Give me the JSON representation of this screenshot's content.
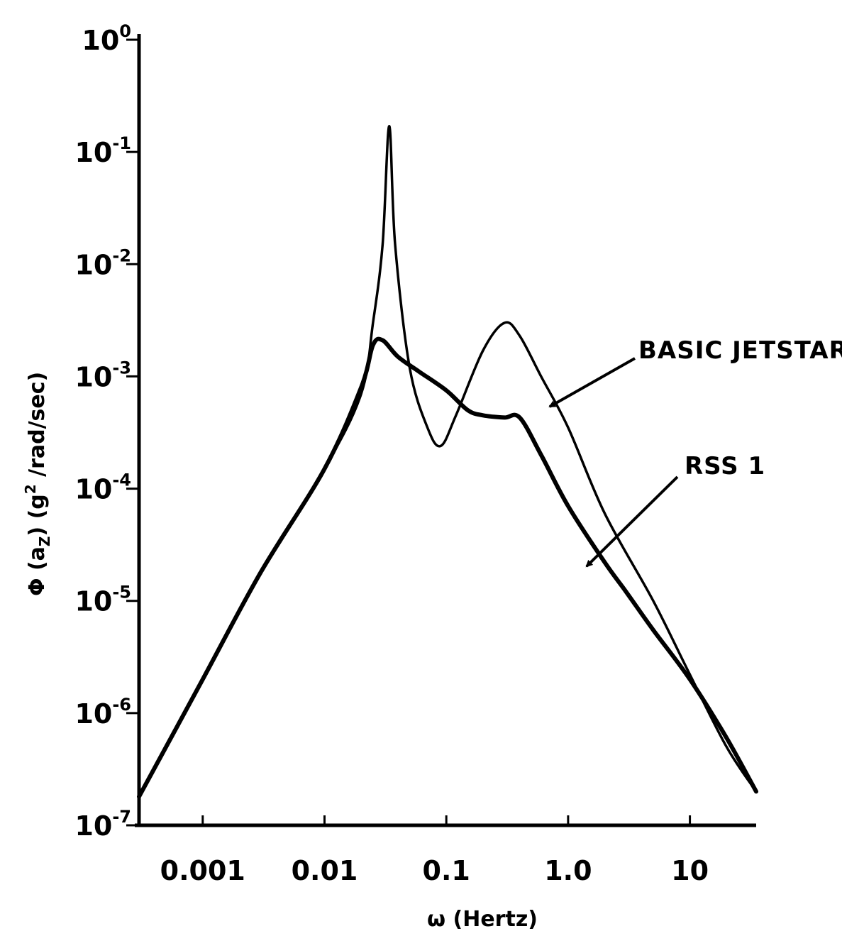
{
  "chart_data": {
    "type": "line",
    "title": "",
    "xlabel": "ω (Hertz)",
    "ylabel": "Φ (a_z) (g² /rad/sec)",
    "ylabel_parts": {
      "sym": "Φ (a",
      "sub": "Z",
      "mid": ") (g",
      "sup": "2",
      "tail": " /rad/sec)"
    },
    "x_scale": "log",
    "y_scale": "log",
    "xlim": [
      0.0003,
      35
    ],
    "ylim": [
      1e-07,
      1
    ],
    "grid": false,
    "x_ticks": [
      {
        "value": 0.001,
        "label": "0.001"
      },
      {
        "value": 0.01,
        "label": "0.01"
      },
      {
        "value": 0.1,
        "label": "0.1"
      },
      {
        "value": 1.0,
        "label": "1.0"
      },
      {
        "value": 10,
        "label": "10"
      }
    ],
    "y_ticks": [
      {
        "value": 1,
        "base": "10",
        "exp": "0"
      },
      {
        "value": 0.1,
        "base": "10",
        "exp": "-1"
      },
      {
        "value": 0.01,
        "base": "10",
        "exp": "-2"
      },
      {
        "value": 0.001,
        "base": "10",
        "exp": "-3"
      },
      {
        "value": 0.0001,
        "base": "10",
        "exp": "-4"
      },
      {
        "value": 1e-05,
        "base": "10",
        "exp": "-5"
      },
      {
        "value": 1e-06,
        "base": "10",
        "exp": "-6"
      },
      {
        "value": 1e-07,
        "base": "10",
        "exp": "-7"
      }
    ],
    "series": [
      {
        "name": "BASIC JETSTAR",
        "label_at": [
          0.3,
          0.0005
        ],
        "points": [
          [
            0.0003,
            1.8e-07
          ],
          [
            0.001,
            2e-06
          ],
          [
            0.003,
            1.8e-05
          ],
          [
            0.01,
            0.00015
          ],
          [
            0.02,
            0.0007
          ],
          [
            0.025,
            0.003
          ],
          [
            0.03,
            0.015
          ],
          [
            0.034,
            0.17
          ],
          [
            0.038,
            0.015
          ],
          [
            0.05,
            0.0012
          ],
          [
            0.07,
            0.00035
          ],
          [
            0.09,
            0.00024
          ],
          [
            0.12,
            0.00045
          ],
          [
            0.2,
            0.0017
          ],
          [
            0.3,
            0.003
          ],
          [
            0.4,
            0.0023
          ],
          [
            0.6,
            0.001
          ],
          [
            1.0,
            0.00035
          ],
          [
            2.0,
            6e-05
          ],
          [
            5.0,
            1e-05
          ],
          [
            10.0,
            2.2e-06
          ],
          [
            20.0,
            5e-07
          ],
          [
            35.0,
            2e-07
          ]
        ]
      },
      {
        "name": "RSS 1",
        "label_at": [
          2.0,
          3.5e-05
        ],
        "points": [
          [
            0.0003,
            1.8e-07
          ],
          [
            0.001,
            2e-06
          ],
          [
            0.003,
            1.8e-05
          ],
          [
            0.01,
            0.00015
          ],
          [
            0.02,
            0.0008
          ],
          [
            0.025,
            0.0019
          ],
          [
            0.03,
            0.0021
          ],
          [
            0.04,
            0.0015
          ],
          [
            0.06,
            0.0011
          ],
          [
            0.1,
            0.00075
          ],
          [
            0.15,
            0.0005
          ],
          [
            0.2,
            0.00045
          ],
          [
            0.3,
            0.00043
          ],
          [
            0.4,
            0.00043
          ],
          [
            0.6,
            0.0002
          ],
          [
            1.0,
            7e-05
          ],
          [
            2.0,
            2.2e-05
          ],
          [
            3.0,
            1.2e-05
          ],
          [
            5.0,
            5.5e-06
          ],
          [
            10.0,
            2e-06
          ],
          [
            20.0,
            6e-07
          ],
          [
            35.0,
            2e-07
          ]
        ]
      }
    ]
  }
}
